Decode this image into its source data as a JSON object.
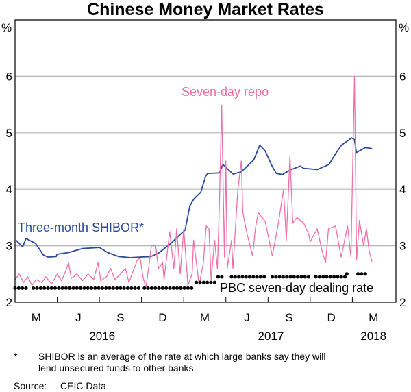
{
  "chart_data": {
    "type": "line",
    "title": "Chinese Money Market Rates",
    "ylabel_left": "%",
    "ylabel_right": "%",
    "ylim": [
      2,
      7
    ],
    "yticks": [
      2,
      3,
      4,
      5,
      6
    ],
    "x_unit": "months since start of 2016",
    "xlim": [
      1,
      28.1
    ],
    "month_ticks": [
      {
        "label": "M",
        "x": 2.5
      },
      {
        "label": "J",
        "x": 5.5
      },
      {
        "label": "S",
        "x": 8.5
      },
      {
        "label": "D",
        "x": 11.5
      },
      {
        "label": "M",
        "x": 14.5
      },
      {
        "label": "J",
        "x": 17.5
      },
      {
        "label": "S",
        "x": 20.5
      },
      {
        "label": "D",
        "x": 23.5
      },
      {
        "label": "M",
        "x": 26.5
      }
    ],
    "year_labels": [
      {
        "label": "2016",
        "x": 7.2
      },
      {
        "label": "2017",
        "x": 19.2
      },
      {
        "label": "2018",
        "x": 26.5
      }
    ],
    "grid": true,
    "series": [
      {
        "name": "Three-month SHIBOR*",
        "color": "#2B4A9B",
        "points": [
          [
            1.06,
            3.1
          ],
          [
            1.54,
            2.98
          ],
          [
            1.78,
            3.13
          ],
          [
            2.46,
            3.04
          ],
          [
            3.0,
            2.84
          ],
          [
            3.34,
            2.8
          ],
          [
            3.93,
            2.81
          ],
          [
            3.98,
            2.85
          ],
          [
            4.8,
            2.88
          ],
          [
            5.78,
            2.95
          ],
          [
            7.0,
            2.97
          ],
          [
            7.59,
            2.88
          ],
          [
            8.37,
            2.81
          ],
          [
            9.2,
            2.79
          ],
          [
            10.66,
            2.81
          ],
          [
            11.15,
            2.86
          ],
          [
            11.98,
            3.02
          ],
          [
            13.1,
            3.28
          ],
          [
            13.44,
            3.71
          ],
          [
            13.73,
            3.83
          ],
          [
            14.22,
            3.95
          ],
          [
            14.56,
            4.23
          ],
          [
            14.7,
            4.28
          ],
          [
            15.54,
            4.29
          ],
          [
            15.78,
            4.44
          ],
          [
            16.51,
            4.27
          ],
          [
            17.1,
            4.31
          ],
          [
            17.98,
            4.52
          ],
          [
            18.41,
            4.78
          ],
          [
            18.8,
            4.68
          ],
          [
            19.29,
            4.41
          ],
          [
            19.59,
            4.28
          ],
          [
            20.02,
            4.26
          ],
          [
            20.56,
            4.34
          ],
          [
            21.29,
            4.41
          ],
          [
            21.54,
            4.37
          ],
          [
            22.51,
            4.35
          ],
          [
            23.34,
            4.44
          ],
          [
            23.83,
            4.64
          ],
          [
            24.22,
            4.78
          ],
          [
            24.95,
            4.91
          ],
          [
            25.15,
            4.88
          ],
          [
            25.29,
            4.65
          ],
          [
            25.93,
            4.74
          ],
          [
            26.41,
            4.72
          ]
        ]
      },
      {
        "name": "Seven-day repo",
        "color": "#EE6FA8",
        "points": [
          [
            1.0,
            2.4
          ],
          [
            1.3,
            2.5
          ],
          [
            1.6,
            2.35
          ],
          [
            1.9,
            2.45
          ],
          [
            2.2,
            2.3
          ],
          [
            2.5,
            2.4
          ],
          [
            2.9,
            2.35
          ],
          [
            3.2,
            2.45
          ],
          [
            3.6,
            2.32
          ],
          [
            4.0,
            2.5
          ],
          [
            4.3,
            2.38
          ],
          [
            4.6,
            2.55
          ],
          [
            4.8,
            2.7
          ],
          [
            5.0,
            2.42
          ],
          [
            5.4,
            2.5
          ],
          [
            5.8,
            2.38
          ],
          [
            6.2,
            2.5
          ],
          [
            6.6,
            2.4
          ],
          [
            6.9,
            2.7
          ],
          [
            7.1,
            2.38
          ],
          [
            7.5,
            2.45
          ],
          [
            7.8,
            2.6
          ],
          [
            8.1,
            2.4
          ],
          [
            8.5,
            2.5
          ],
          [
            8.85,
            2.6
          ],
          [
            9.1,
            2.35
          ],
          [
            9.4,
            2.55
          ],
          [
            9.7,
            2.75
          ],
          [
            9.9,
            2.78
          ],
          [
            10.1,
            2.45
          ],
          [
            10.3,
            2.25
          ],
          [
            10.5,
            2.6
          ],
          [
            10.7,
            3.0
          ],
          [
            11.0,
            3.0
          ],
          [
            11.2,
            2.6
          ],
          [
            11.5,
            2.7
          ],
          [
            11.6,
            2.4
          ],
          [
            12.0,
            3.25
          ],
          [
            12.3,
            2.6
          ],
          [
            12.5,
            3.3
          ],
          [
            12.75,
            2.5
          ],
          [
            13.0,
            3.3
          ],
          [
            13.3,
            2.3
          ],
          [
            13.6,
            2.5
          ],
          [
            13.7,
            3.1
          ],
          [
            14.1,
            2.3
          ],
          [
            14.4,
            2.7
          ],
          [
            14.6,
            3.35
          ],
          [
            14.8,
            3.3
          ],
          [
            14.95,
            2.4
          ],
          [
            15.2,
            3.1
          ],
          [
            15.4,
            2.6
          ],
          [
            15.55,
            3.83
          ],
          [
            15.7,
            5.49
          ],
          [
            15.9,
            2.8
          ],
          [
            16.0,
            4.5
          ],
          [
            16.1,
            2.6
          ],
          [
            16.4,
            3.1
          ],
          [
            16.5,
            2.6
          ],
          [
            16.85,
            3.99
          ],
          [
            17.1,
            4.5
          ],
          [
            17.2,
            3.6
          ],
          [
            17.5,
            3.22
          ],
          [
            17.9,
            2.82
          ],
          [
            18.1,
            3.3
          ],
          [
            18.3,
            3.59
          ],
          [
            18.8,
            3.43
          ],
          [
            19.3,
            2.82
          ],
          [
            19.7,
            3.35
          ],
          [
            20.1,
            3.99
          ],
          [
            20.3,
            3.1
          ],
          [
            20.56,
            4.6
          ],
          [
            20.76,
            3.4
          ],
          [
            21.05,
            3.5
          ],
          [
            21.54,
            3.4
          ],
          [
            21.9,
            3.2
          ],
          [
            22.0,
            3.07
          ],
          [
            22.5,
            3.3
          ],
          [
            22.85,
            2.9
          ],
          [
            23.1,
            2.7
          ],
          [
            23.3,
            3.3
          ],
          [
            23.8,
            3.35
          ],
          [
            24.2,
            2.8
          ],
          [
            24.66,
            3.35
          ],
          [
            24.9,
            2.8
          ],
          [
            25.15,
            6.0
          ],
          [
            25.3,
            2.75
          ],
          [
            25.5,
            3.45
          ],
          [
            25.8,
            3.0
          ],
          [
            26.0,
            3.3
          ],
          [
            26.2,
            2.9
          ],
          [
            26.4,
            2.72
          ]
        ]
      },
      {
        "name": "PBC seven-day dealing rate",
        "color": "#000000",
        "style": "dotted",
        "segments": [
          {
            "from": 1.0,
            "to": 2.0,
            "value": 2.25
          },
          {
            "from": 2.3,
            "to": 9.8,
            "value": 2.25
          },
          {
            "from": 10.2,
            "to": 13.6,
            "value": 2.25
          },
          {
            "from": 13.9,
            "to": 15.4,
            "value": 2.35
          },
          {
            "from": 15.45,
            "to": 15.8,
            "value": 2.45
          },
          {
            "from": 16.4,
            "to": 18.9,
            "value": 2.45
          },
          {
            "from": 19.3,
            "to": 22.0,
            "value": 2.45
          },
          {
            "from": 22.4,
            "to": 24.5,
            "value": 2.45
          },
          {
            "from": 24.6,
            "to": 24.8,
            "value": 2.5
          },
          {
            "from": 25.4,
            "to": 26.0,
            "value": 2.5
          }
        ]
      }
    ],
    "annotations": [
      {
        "text": "Seven-day repo",
        "series": "Seven-day repo"
      },
      {
        "text": "Three-month SHIBOR*",
        "series": "Three-month SHIBOR*"
      },
      {
        "text": "PBC seven-day dealing rate",
        "series": "PBC seven-day dealing rate"
      }
    ]
  },
  "footnote_marker": "*",
  "footnote": [
    "SHIBOR is an average of the rate at which large banks say they will",
    "lend unsecured funds to other banks"
  ],
  "source_label": "Source:",
  "source": "CEIC Data"
}
